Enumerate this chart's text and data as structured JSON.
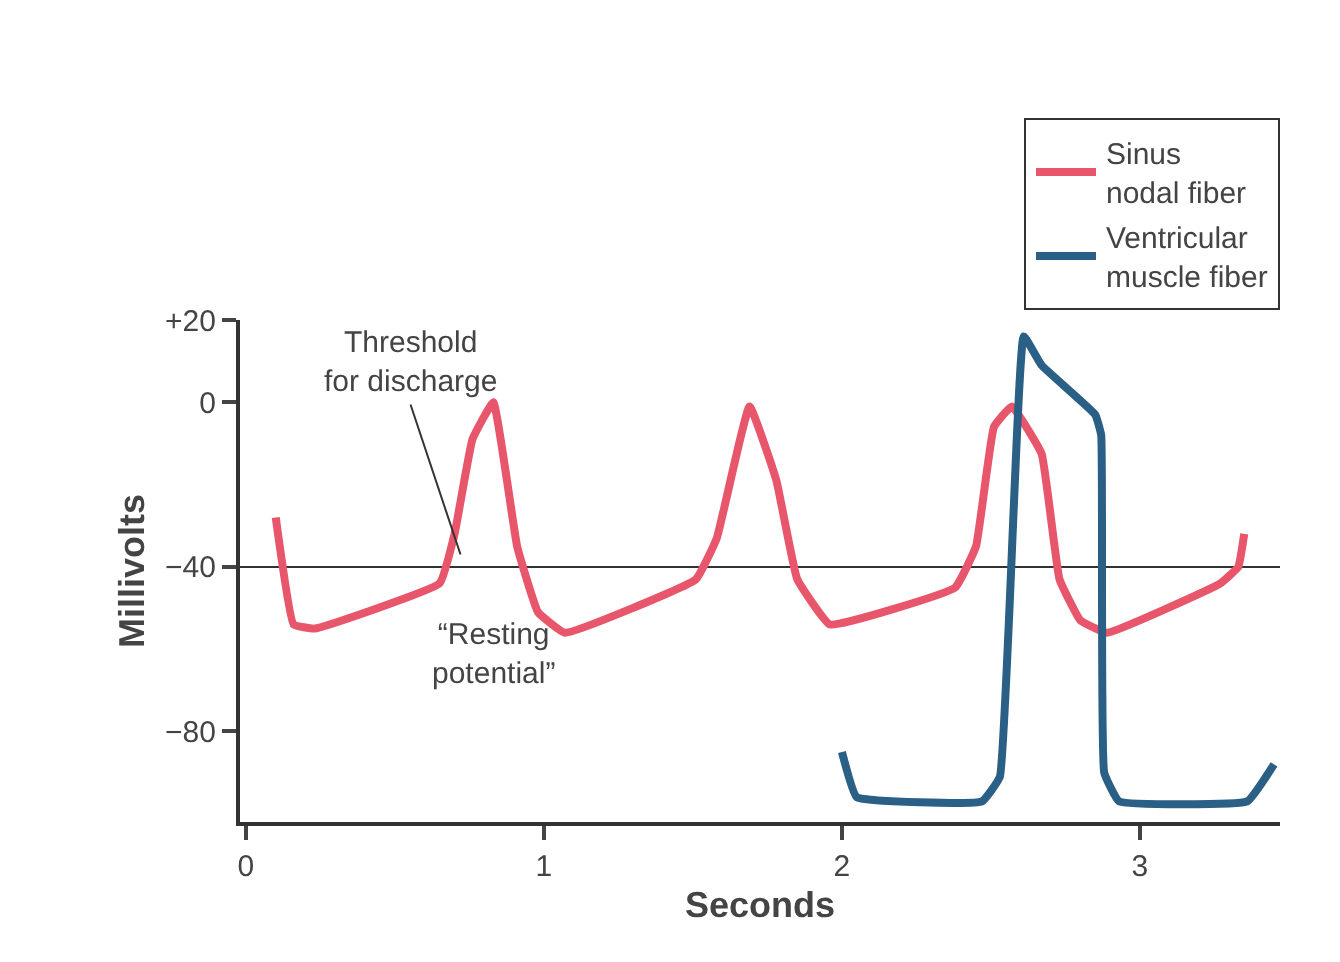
{
  "chart_data": {
    "type": "line",
    "xlabel": "Seconds",
    "ylabel": "Millivolts",
    "xlim": [
      -0.02,
      3.47
    ],
    "ylim": [
      -102,
      20
    ],
    "xticks": [
      0,
      1,
      2,
      3
    ],
    "yticks": [
      {
        "value": 20,
        "label": "+20"
      },
      0,
      {
        "value": -40,
        "label": "−40"
      },
      {
        "value": -80,
        "label": "−80"
      }
    ],
    "grid": false,
    "legend": "top right",
    "marker": "none",
    "line_style": "solid",
    "series": [
      {
        "name": "Sinus nodal fiber",
        "color": "#e8566b",
        "x": [
          0.1,
          0.16,
          0.23,
          0.65,
          0.7,
          0.76,
          0.83,
          0.91,
          0.98,
          1.07,
          1.51,
          1.58,
          1.69,
          1.78,
          1.85,
          1.96,
          2.38,
          2.45,
          2.51,
          2.57,
          2.67,
          2.73,
          2.8,
          2.89,
          3.27,
          3.33,
          3.35
        ],
        "values": [
          -28,
          -54,
          -55,
          -44,
          -32,
          -9,
          0,
          -35,
          -51,
          -56,
          -43,
          -33,
          -1,
          -19,
          -43,
          -54,
          -45,
          -35,
          -6,
          -1,
          -12.5,
          -43,
          -53,
          -56,
          -44,
          -40,
          -32
        ]
      },
      {
        "name": "Ventricular muscle fiber",
        "color": "#2a5f86",
        "x": [
          2.0,
          2.05,
          2.47,
          2.53,
          2.61,
          2.67,
          2.85,
          2.87,
          2.88,
          2.93,
          3.36,
          3.45
        ],
        "values": [
          -85,
          -96,
          -97,
          -91,
          16,
          9,
          -3,
          -8,
          -90,
          -97,
          -97,
          -88
        ]
      }
    ],
    "ref_lines": [
      {
        "axis": "y",
        "value": -40,
        "color": "#333333"
      }
    ],
    "annotations": [
      {
        "text": "Threshold for discharge",
        "x": 0.72,
        "y": -37
      },
      "“Resting potential”"
    ]
  }
}
